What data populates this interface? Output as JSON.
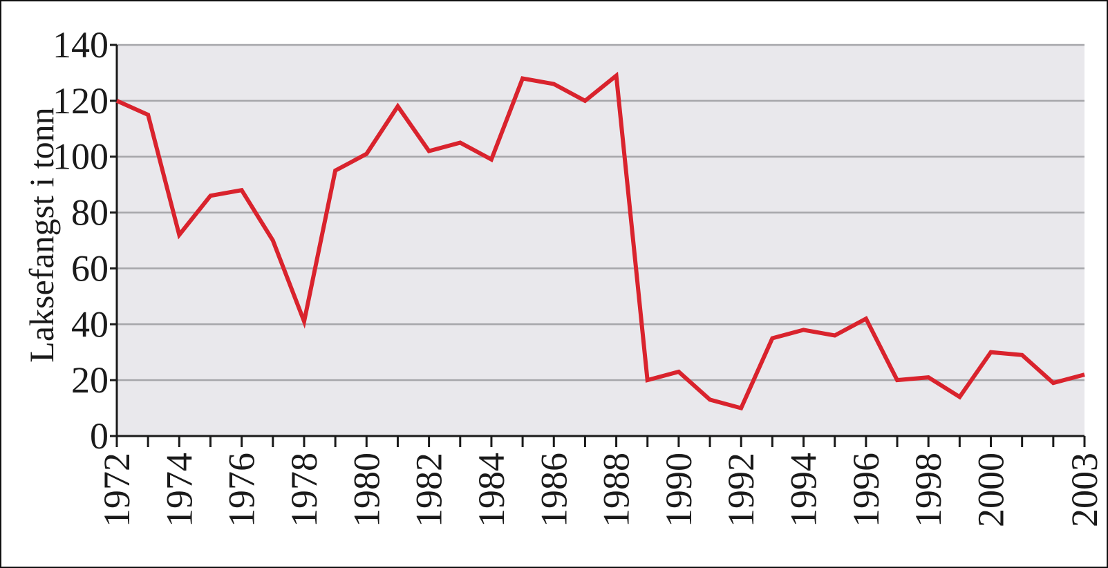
{
  "chart_data": {
    "type": "line",
    "title": "",
    "xlabel": "",
    "ylabel": "Laksefangst i tonn",
    "ylim": [
      0,
      140
    ],
    "xlim": [
      1972,
      2003
    ],
    "grid": true,
    "line_color": "#d9232d",
    "plot_background": "#e9e8ec",
    "y_ticks": [
      "0",
      "20",
      "40",
      "60",
      "80",
      "100",
      "120",
      "140"
    ],
    "x_tick_labels": [
      "1972",
      "1974",
      "1976",
      "1978",
      "1980",
      "1982",
      "1984",
      "1986",
      "1988",
      "1990",
      "1992",
      "1994",
      "1996",
      "1998",
      "2000",
      "2003"
    ],
    "x": [
      1972,
      1973,
      1974,
      1975,
      1976,
      1977,
      1978,
      1979,
      1980,
      1981,
      1982,
      1983,
      1984,
      1985,
      1986,
      1987,
      1988,
      1989,
      1990,
      1991,
      1992,
      1993,
      1994,
      1995,
      1996,
      1997,
      1998,
      1999,
      2000,
      2001,
      2002,
      2003
    ],
    "series": [
      {
        "values": [
          120,
          115,
          72,
          86,
          88,
          70,
          41,
          95,
          101,
          118,
          102,
          105,
          99,
          128,
          126,
          120,
          129,
          20,
          23,
          13,
          10,
          35,
          38,
          36,
          42,
          20,
          21,
          14,
          30,
          29,
          19,
          22
        ]
      }
    ]
  }
}
